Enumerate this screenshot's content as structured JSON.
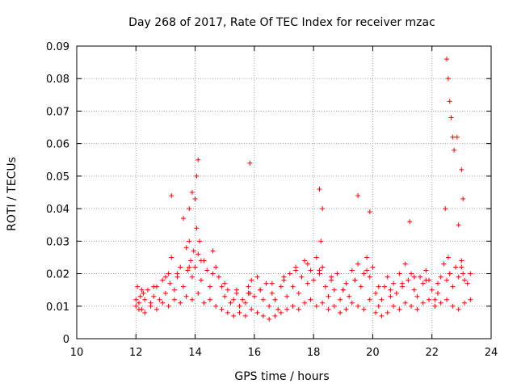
{
  "chart_data": {
    "type": "scatter",
    "title": "Day 268 of 2017, Rate Of TEC Index for receiver mzac",
    "xlabel": "GPS time / hours",
    "ylabel": "ROTI / TECUs",
    "xlim": [
      10,
      24
    ],
    "ylim": [
      0,
      0.09
    ],
    "grid": true,
    "x_ticks": [
      10,
      12,
      14,
      16,
      18,
      20,
      22,
      24
    ],
    "x_tick_labels": [
      "10",
      "12",
      "14",
      "16",
      "18",
      "20",
      "22",
      "24"
    ],
    "y_ticks": [
      0,
      0.01,
      0.02,
      0.03,
      0.04,
      0.05,
      0.06,
      0.07,
      0.08,
      0.09
    ],
    "y_tick_labels": [
      "0",
      "0.01",
      "0.02",
      "0.03",
      "0.04",
      "0.05",
      "0.06",
      "0.07",
      "0.08",
      "0.09"
    ],
    "marker": "+",
    "marker_color": "#ff0000",
    "series": [
      {
        "name": "ROTI",
        "x": [
          12.0,
          12.05,
          12.1,
          12.15,
          12.2,
          12.25,
          12.3,
          12.4,
          12.5,
          12.6,
          12.7,
          12.8,
          12.9,
          13.0,
          13.1,
          13.15,
          13.2,
          13.3,
          13.4,
          13.5,
          13.6,
          13.7,
          13.75,
          13.8,
          13.85,
          13.9,
          13.95,
          14.0,
          14.05,
          14.1,
          14.15,
          14.2,
          14.3,
          14.4,
          14.5,
          14.6,
          14.7,
          14.8,
          14.9,
          15.0,
          15.1,
          15.2,
          15.3,
          15.4,
          15.5,
          15.6,
          15.7,
          15.8,
          15.85,
          15.9,
          16.0,
          16.1,
          16.2,
          16.3,
          16.4,
          16.5,
          16.6,
          16.7,
          16.8,
          16.9,
          17.0,
          17.1,
          17.2,
          17.3,
          17.4,
          17.5,
          17.6,
          17.7,
          17.8,
          17.9,
          18.0,
          18.1,
          18.2,
          18.25,
          18.3,
          18.4,
          18.5,
          18.6,
          18.7,
          18.8,
          18.9,
          19.0,
          19.1,
          19.2,
          19.3,
          19.4,
          19.5,
          19.6,
          19.7,
          19.8,
          19.9,
          20.0,
          20.1,
          20.2,
          20.3,
          20.4,
          20.5,
          20.6,
          20.7,
          20.8,
          20.9,
          21.0,
          21.1,
          21.2,
          21.3,
          21.4,
          21.5,
          21.6,
          21.7,
          21.8,
          21.9,
          22.0,
          22.1,
          22.2,
          22.3,
          22.4,
          22.5,
          22.55,
          22.6,
          22.7,
          22.8,
          22.9,
          23.0,
          23.05,
          23.1,
          23.2,
          23.3,
          12.0,
          12.1,
          12.3,
          12.5,
          12.7,
          12.9,
          13.1,
          13.3,
          13.5,
          13.7,
          13.9,
          14.1,
          14.3,
          14.5,
          14.7,
          14.9,
          15.1,
          15.3,
          15.5,
          15.7,
          15.9,
          16.1,
          16.3,
          16.5,
          16.7,
          16.9,
          17.1,
          17.3,
          17.5,
          17.7,
          17.9,
          18.1,
          18.3,
          18.5,
          18.7,
          18.9,
          19.1,
          19.3,
          19.5,
          19.7,
          19.9,
          20.1,
          20.3,
          20.5,
          20.7,
          20.9,
          21.1,
          21.3,
          21.5,
          21.7,
          21.9,
          22.1,
          22.3,
          22.5,
          22.7,
          22.9,
          23.1,
          23.3,
          12.2,
          12.6,
          13.0,
          13.4,
          13.8,
          14.2,
          14.6,
          15.0,
          15.4,
          15.8,
          16.2,
          16.6,
          17.0,
          17.4,
          17.8,
          18.2,
          18.6,
          19.0,
          19.4,
          19.8,
          20.2,
          20.6,
          21.0,
          21.4,
          21.8,
          22.2,
          22.6,
          23.0,
          13.6,
          13.8,
          13.9,
          14.0,
          14.05,
          14.1,
          13.2,
          15.85,
          18.2,
          18.3,
          19.5,
          19.9,
          21.25,
          22.45,
          22.5,
          22.55,
          22.6,
          22.65,
          22.7,
          22.75,
          23.0,
          23.05,
          22.85,
          22.9
        ],
        "y": [
          0.012,
          0.016,
          0.011,
          0.013,
          0.009,
          0.014,
          0.012,
          0.015,
          0.011,
          0.013,
          0.016,
          0.012,
          0.018,
          0.014,
          0.02,
          0.017,
          0.025,
          0.015,
          0.019,
          0.022,
          0.016,
          0.028,
          0.021,
          0.03,
          0.024,
          0.019,
          0.027,
          0.022,
          0.034,
          0.026,
          0.03,
          0.018,
          0.024,
          0.021,
          0.016,
          0.027,
          0.022,
          0.019,
          0.016,
          0.013,
          0.015,
          0.011,
          0.012,
          0.014,
          0.01,
          0.012,
          0.011,
          0.016,
          0.014,
          0.018,
          0.013,
          0.019,
          0.015,
          0.012,
          0.017,
          0.01,
          0.014,
          0.012,
          0.009,
          0.016,
          0.018,
          0.013,
          0.02,
          0.016,
          0.022,
          0.014,
          0.019,
          0.024,
          0.017,
          0.021,
          0.018,
          0.025,
          0.02,
          0.03,
          0.022,
          0.016,
          0.013,
          0.019,
          0.015,
          0.02,
          0.012,
          0.015,
          0.017,
          0.013,
          0.021,
          0.018,
          0.023,
          0.016,
          0.02,
          0.025,
          0.019,
          0.022,
          0.014,
          0.01,
          0.012,
          0.016,
          0.019,
          0.013,
          0.017,
          0.014,
          0.02,
          0.016,
          0.023,
          0.018,
          0.02,
          0.015,
          0.013,
          0.019,
          0.017,
          0.021,
          0.018,
          0.015,
          0.012,
          0.014,
          0.019,
          0.023,
          0.018,
          0.025,
          0.02,
          0.016,
          0.022,
          0.019,
          0.024,
          0.02,
          0.018,
          0.017,
          0.02,
          0.01,
          0.009,
          0.008,
          0.01,
          0.009,
          0.011,
          0.01,
          0.012,
          0.011,
          0.013,
          0.012,
          0.014,
          0.011,
          0.012,
          0.01,
          0.009,
          0.008,
          0.007,
          0.008,
          0.007,
          0.009,
          0.008,
          0.007,
          0.006,
          0.007,
          0.008,
          0.009,
          0.01,
          0.009,
          0.011,
          0.012,
          0.01,
          0.011,
          0.009,
          0.01,
          0.008,
          0.009,
          0.011,
          0.01,
          0.009,
          0.012,
          0.008,
          0.007,
          0.008,
          0.01,
          0.009,
          0.011,
          0.01,
          0.009,
          0.011,
          0.012,
          0.01,
          0.011,
          0.012,
          0.01,
          0.009,
          0.011,
          0.012,
          0.015,
          0.016,
          0.019,
          0.02,
          0.022,
          0.024,
          0.02,
          0.017,
          0.015,
          0.014,
          0.015,
          0.017,
          0.019,
          0.021,
          0.023,
          0.021,
          0.018,
          0.015,
          0.018,
          0.021,
          0.016,
          0.015,
          0.017,
          0.019,
          0.018,
          0.017,
          0.02,
          0.022,
          0.037,
          0.04,
          0.045,
          0.043,
          0.05,
          0.055,
          0.044,
          0.054,
          0.046,
          0.04,
          0.044,
          0.039,
          0.036,
          0.04,
          0.086,
          0.08,
          0.073,
          0.068,
          0.062,
          0.058,
          0.052,
          0.043,
          0.062,
          0.035
        ]
      }
    ]
  }
}
